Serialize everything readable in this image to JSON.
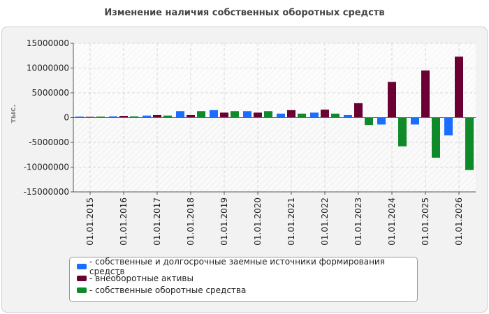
{
  "chart_data": {
    "type": "bar",
    "title": "Изменение наличия собственных оборотных средств",
    "ylabel": "тыс.",
    "xlabel": "",
    "ylim": [
      -15000000,
      15000000
    ],
    "yticks": [
      15000000,
      10000000,
      5000000,
      0,
      -5000000,
      -10000000,
      -15000000
    ],
    "ytick_labels": [
      "15000000",
      "10000000",
      "5000000",
      "0",
      "-5000000",
      "-10000000",
      "-15000000"
    ],
    "grid": true,
    "legend_position": "bottom",
    "categories": [
      "01.01.2015",
      "01.01.2016",
      "01.01.2017",
      "01.01.2018",
      "01.01.2019",
      "01.01.2020",
      "01.01.2021",
      "01.01.2022",
      "01.01.2023",
      "01.01.2024",
      "01.01.2025",
      "01.01.2026"
    ],
    "series": [
      {
        "name": "- собственные и долгосрочные заемные источники формирования средств",
        "color": "#1a6dff",
        "values": [
          200000,
          250000,
          400000,
          1300000,
          1500000,
          1300000,
          800000,
          1000000,
          500000,
          -1400000,
          -1400000,
          -3600000
        ]
      },
      {
        "name": "- внеоборотные активы",
        "color": "#6b0033",
        "values": [
          150000,
          350000,
          500000,
          500000,
          1000000,
          1000000,
          1500000,
          1600000,
          2900000,
          7200000,
          9500000,
          12300000
        ]
      },
      {
        "name": "- собственные оборотные средства",
        "color": "#0e8a2a",
        "values": [
          200000,
          250000,
          400000,
          1300000,
          1300000,
          1300000,
          800000,
          800000,
          -1500000,
          -5800000,
          -8100000,
          -10600000
        ]
      }
    ]
  }
}
